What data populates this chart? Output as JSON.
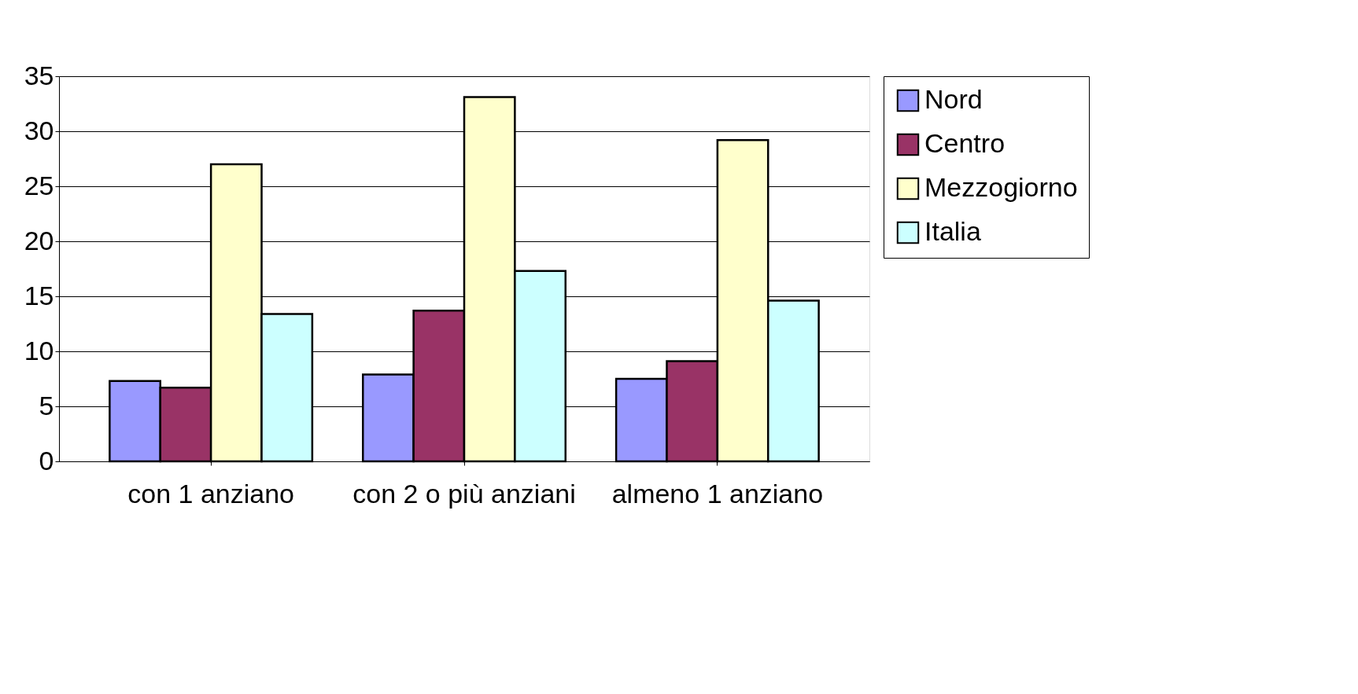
{
  "chart_data": {
    "type": "bar",
    "categories": [
      "con 1 anziano",
      "con 2 o più anziani",
      "almeno 1 anziano"
    ],
    "series": [
      {
        "name": "Nord",
        "color": "#9999ff",
        "values": [
          7.3,
          7.9,
          7.5
        ]
      },
      {
        "name": "Centro",
        "color": "#993366",
        "values": [
          6.7,
          13.7,
          9.1
        ]
      },
      {
        "name": "Mezzogiorno",
        "color": "#ffffcc",
        "values": [
          27.0,
          33.1,
          29.2
        ]
      },
      {
        "name": "Italia",
        "color": "#ccffff",
        "values": [
          13.4,
          17.3,
          14.6
        ]
      }
    ],
    "ylim": [
      0,
      35
    ],
    "yticks": [
      0,
      5,
      10,
      15,
      20,
      25,
      30,
      35
    ],
    "grid": "y",
    "legend": "right"
  }
}
